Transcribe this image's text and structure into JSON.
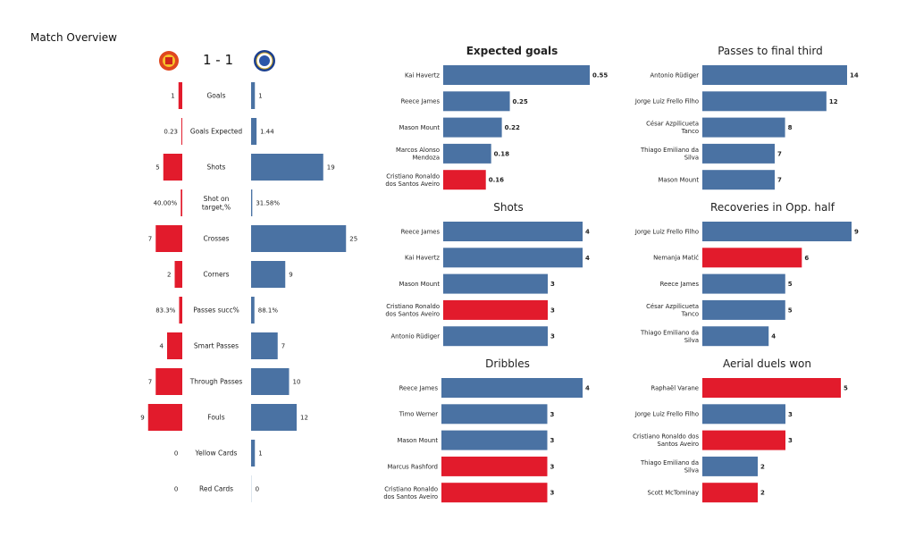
{
  "title": "Match Overview",
  "score": "1 - 1",
  "colors": {
    "home": "#e21b2c",
    "away": "#4a72a3"
  },
  "teams": {
    "home_logo": "manchester-united-crest",
    "away_logo": "chelsea-crest"
  },
  "chart_data": [
    {
      "type": "bar",
      "orientation": "diverging-horizontal",
      "categories": [
        "Goals",
        "Goals Expected",
        "Shots",
        "Shot on target,%",
        "Crosses",
        "Corners",
        "Passes succ%",
        "Smart Passes",
        "Through Passes",
        "Fouls",
        "Yellow Cards",
        "Red Cards"
      ],
      "series": [
        {
          "side": "home",
          "values": [
            1,
            0.23,
            5,
            40.0,
            7,
            2,
            83.3,
            4,
            7,
            9,
            0,
            0
          ],
          "labels": [
            "1",
            "0.23",
            "5",
            "40.00%",
            "7",
            "2",
            "83.3%",
            "4",
            "7",
            "9",
            "0",
            "0"
          ]
        },
        {
          "side": "away",
          "values": [
            1,
            1.44,
            19,
            31.58,
            25,
            9,
            88.1,
            7,
            10,
            12,
            1,
            0
          ],
          "labels": [
            "1",
            "1.44",
            "19",
            "31.58%",
            "25",
            "9",
            "88.1%",
            "7",
            "10",
            "12",
            "1",
            "0"
          ]
        }
      ],
      "percent_rows": [
        3,
        6
      ]
    },
    {
      "type": "bar",
      "title": "Expected goals",
      "title_bold": true,
      "xlim": [
        0,
        0.55
      ],
      "categories": [
        "Kai Havertz",
        "Reece James",
        "Mason Mount",
        "Marcos  Alonso\nMendoza",
        "Cristiano Ronaldo\ndos Santos Aveiro"
      ],
      "values": [
        0.55,
        0.25,
        0.22,
        0.18,
        0.16
      ],
      "labels": [
        "0.55",
        "0.25",
        "0.22",
        "0.18",
        "0.16"
      ],
      "team": [
        "away",
        "away",
        "away",
        "away",
        "home"
      ]
    },
    {
      "type": "bar",
      "title": "Passes to final third",
      "xlim": [
        0,
        14
      ],
      "categories": [
        "Antonio Rüdiger",
        "Jorge Luiz Frello Filho",
        "César Azpilicueta\nTanco",
        "Thiago Emiliano da\nSilva",
        "Mason Mount"
      ],
      "values": [
        14,
        12,
        8,
        7,
        7
      ],
      "labels": [
        "14",
        "12",
        "8",
        "7",
        "7"
      ],
      "team": [
        "away",
        "away",
        "away",
        "away",
        "away"
      ]
    },
    {
      "type": "bar",
      "title": "Shots",
      "xlim": [
        0,
        4
      ],
      "categories": [
        "Reece James",
        "Kai Havertz",
        "Mason Mount",
        "Cristiano Ronaldo\ndos Santos Aveiro",
        "Antonio Rüdiger"
      ],
      "values": [
        4,
        4,
        3,
        3,
        3
      ],
      "labels": [
        "4",
        "4",
        "3",
        "3",
        "3"
      ],
      "team": [
        "away",
        "away",
        "away",
        "home",
        "away"
      ]
    },
    {
      "type": "bar",
      "title": "Recoveries in Opp. half",
      "xlim": [
        0,
        9
      ],
      "categories": [
        "Jorge Luiz Frello Filho",
        "Nemanja Matić",
        "Reece James",
        "César Azpilicueta\nTanco",
        "Thiago Emiliano da\nSilva"
      ],
      "values": [
        9,
        6,
        5,
        5,
        4
      ],
      "labels": [
        "9",
        "6",
        "5",
        "5",
        "4"
      ],
      "team": [
        "away",
        "home",
        "away",
        "away",
        "away"
      ]
    },
    {
      "type": "bar",
      "title": "Dribbles",
      "xlim": [
        0,
        4
      ],
      "categories": [
        "Reece James",
        "Timo Werner",
        "Mason Mount",
        "Marcus Rashford",
        "Cristiano Ronaldo\ndos Santos Aveiro"
      ],
      "values": [
        4,
        3,
        3,
        3,
        3
      ],
      "labels": [
        "4",
        "3",
        "3",
        "3",
        "3"
      ],
      "team": [
        "away",
        "away",
        "away",
        "home",
        "home"
      ]
    },
    {
      "type": "bar",
      "title": "Aerial duels won",
      "xlim": [
        0,
        5
      ],
      "categories": [
        "Raphaël Varane",
        "Jorge Luiz Frello Filho",
        "Cristiano Ronaldo dos\nSantos Aveiro",
        "Thiago Emiliano da\nSilva",
        "Scott McTominay"
      ],
      "values": [
        5,
        3,
        3,
        2,
        2
      ],
      "labels": [
        "5",
        "3",
        "3",
        "2",
        "2"
      ],
      "team": [
        "home",
        "away",
        "home",
        "away",
        "home"
      ]
    }
  ]
}
